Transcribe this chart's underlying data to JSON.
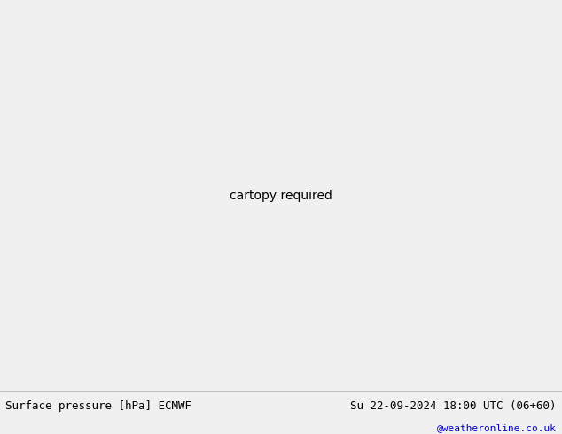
{
  "title_left": "Surface pressure [hPa] ECMWF",
  "title_right": "Su 22-09-2024 18:00 UTC (06+60)",
  "credit": "@weatheronline.co.uk",
  "land_color": "#c8e6a0",
  "ocean_color": "#d8d8d8",
  "border_color": "#808080",
  "figsize": [
    6.34,
    4.9
  ],
  "dpi": 100,
  "bottom_bar_color": "#f0f0f0",
  "label_fontsize": 9,
  "credit_fontsize": 8,
  "credit_color": "#0000cc",
  "contour_low_color": "blue",
  "contour_high_color": "red",
  "contour_mid_color": "black",
  "contour_linewidth": 1.0,
  "contour_mid_linewidth": 1.5,
  "label_size": 7,
  "levels_step": 4,
  "levels_min": 988,
  "levels_max": 1040,
  "mid_level": 1013
}
